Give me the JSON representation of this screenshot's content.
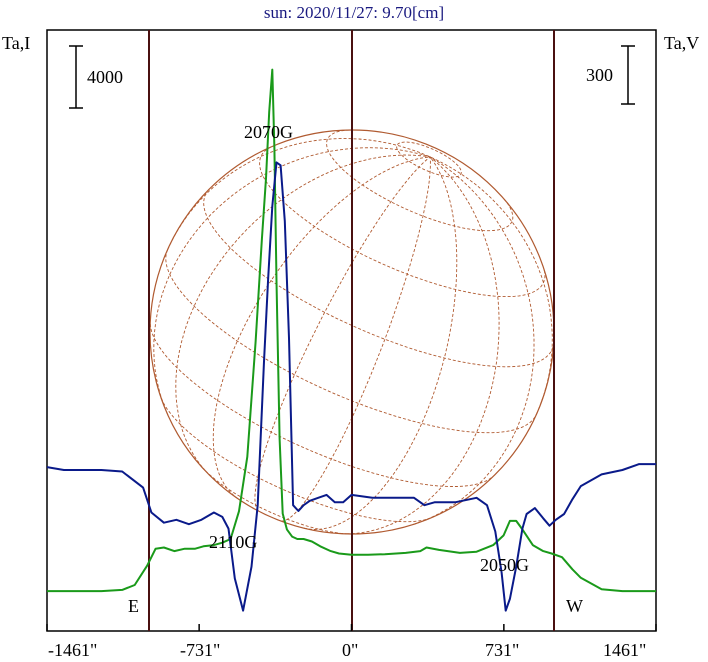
{
  "title": "sun: 2020/11/27: 9.70[cm]",
  "axis_labels": {
    "left": "Ta,I",
    "right": "Ta,V"
  },
  "scale_bars": {
    "left": "4000",
    "right": "300"
  },
  "limb_labels": {
    "east": "E",
    "west": "W"
  },
  "colors": {
    "intensity": "#1a9a1a",
    "polarization": "#0a1a8a",
    "grid": "#b05a30",
    "limb_lines": "#4a1010",
    "title": "#1a1a80"
  },
  "chart_data": {
    "type": "line",
    "title": "sun: 2020/11/27: 9.70[cm]",
    "xlabel": "",
    "xlim": [
      -1461,
      1461
    ],
    "x_ticks": [
      "-1461\"",
      "-731\"",
      "0\"",
      "731\"",
      "1461\""
    ],
    "x_tick_values": [
      -1461,
      -731,
      0,
      731,
      1461
    ],
    "vertical_lines": [
      -974,
      0,
      974
    ],
    "grid": "heliographic",
    "annotations": [
      {
        "text": "2070G",
        "x": -380
      },
      {
        "text": "2110G",
        "x": -560
      },
      {
        "text": "2050G",
        "x": 780
      }
    ],
    "series": [
      {
        "name": "Ta,I",
        "color": "#1a9a1a",
        "x": [
          -1461,
          -1200,
          -1100,
          -1040,
          -980,
          -940,
          -900,
          -850,
          -800,
          -750,
          -710,
          -660,
          -620,
          -580,
          -540,
          -500,
          -460,
          -430,
          -410,
          -395,
          -380,
          -370,
          -360,
          -345,
          -330,
          -310,
          -285,
          -260,
          -230,
          -190,
          -150,
          -100,
          -60,
          0,
          80,
          160,
          260,
          330,
          360,
          420,
          520,
          600,
          680,
          730,
          760,
          790,
          820,
          870,
          920,
          960,
          1010,
          1060,
          1100,
          1200,
          1300,
          1461
        ],
        "y": [
          140,
          140,
          150,
          190,
          350,
          490,
          500,
          470,
          490,
          490,
          510,
          520,
          540,
          570,
          800,
          1250,
          2200,
          3050,
          3550,
          4100,
          4450,
          3800,
          2700,
          1400,
          780,
          650,
          590,
          570,
          570,
          550,
          510,
          470,
          450,
          440,
          440,
          445,
          455,
          470,
          500,
          480,
          455,
          465,
          520,
          600,
          720,
          720,
          650,
          520,
          470,
          450,
          420,
          320,
          250,
          155,
          140,
          140
        ]
      },
      {
        "name": "Ta,V",
        "color": "#0a1a8a",
        "x": [
          -1461,
          -1380,
          -1300,
          -1200,
          -1100,
          -1000,
          -960,
          -900,
          -840,
          -780,
          -720,
          -660,
          -620,
          -590,
          -560,
          -520,
          -480,
          -450,
          -420,
          -400,
          -380,
          -360,
          -340,
          -320,
          -300,
          -280,
          -255,
          -230,
          -200,
          -160,
          -120,
          -80,
          -40,
          0,
          100,
          200,
          300,
          350,
          400,
          500,
          600,
          650,
          690,
          720,
          740,
          760,
          790,
          820,
          840,
          880,
          920,
          950,
          980,
          1020,
          1060,
          1100,
          1200,
          1300,
          1380,
          1461
        ],
        "y": [
          10,
          0,
          0,
          0,
          -5,
          -60,
          -145,
          -180,
          -170,
          -185,
          -170,
          -145,
          -160,
          -200,
          -370,
          -480,
          -330,
          -120,
          370,
          650,
          900,
          1050,
          1040,
          850,
          450,
          -120,
          -140,
          -120,
          -105,
          -95,
          -85,
          -110,
          -110,
          -85,
          -95,
          -95,
          -95,
          -120,
          -110,
          -110,
          -95,
          -120,
          -210,
          -350,
          -480,
          -440,
          -330,
          -200,
          -150,
          -130,
          -165,
          -190,
          -170,
          -150,
          -100,
          -55,
          -15,
          0,
          20,
          20
        ]
      }
    ]
  }
}
